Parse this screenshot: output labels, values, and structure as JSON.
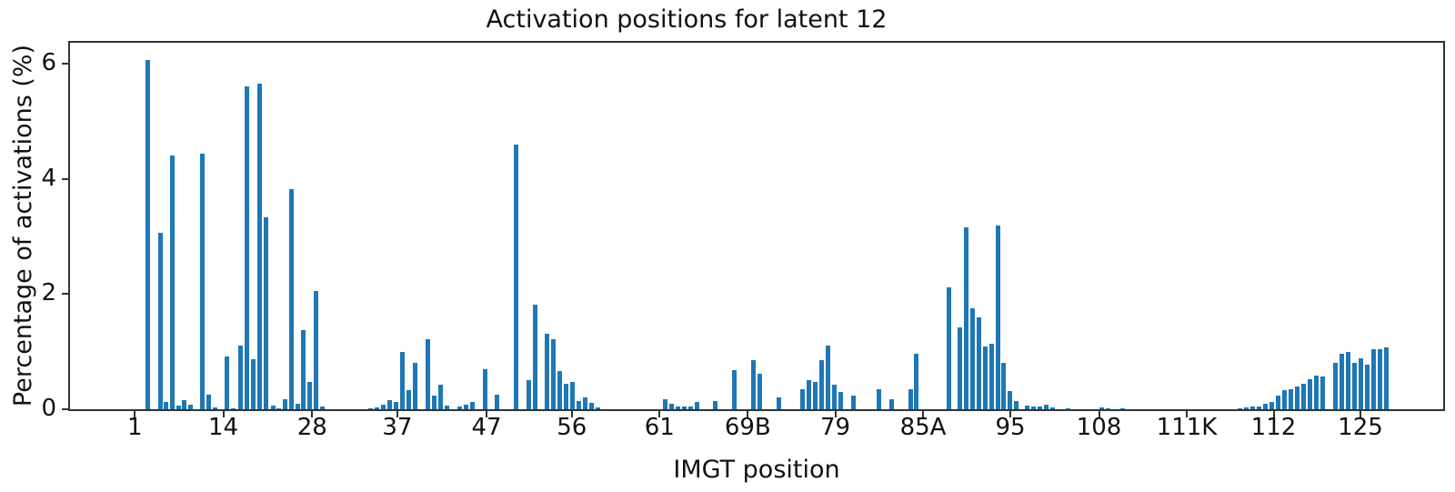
{
  "colors": {
    "bar": "#1f77b4",
    "axis": "#333333",
    "text": "#111111",
    "background": "#ffffff"
  },
  "chart_data": {
    "type": "bar",
    "title": "Activation positions for latent 12",
    "xlabel": "IMGT position",
    "ylabel": "Percentage of activations (%)",
    "ylim": [
      0,
      6.38
    ],
    "yticks": [
      0,
      2,
      4,
      6
    ],
    "grid": false,
    "legend": "none",
    "xticks": [
      [
        "1",
        148.3
      ],
      [
        "14",
        245.5
      ],
      [
        "28",
        343.3
      ],
      [
        "37",
        436.9
      ],
      [
        "47",
        535.0
      ],
      [
        "56",
        628.8
      ],
      [
        "61",
        725.3
      ],
      [
        "69B",
        822.3
      ],
      [
        "79",
        918.5
      ],
      [
        "85A",
        1015.0
      ],
      [
        "95",
        1111.0
      ],
      [
        "108",
        1208.5
      ],
      [
        "111K",
        1305.0
      ],
      [
        "112",
        1400.5
      ],
      [
        "125",
        1496.0
      ]
    ],
    "bars": [
      [
        162.7,
        6.06
      ],
      [
        176.0,
        3.07
      ],
      [
        182.7,
        0.12
      ],
      [
        189.3,
        4.41
      ],
      [
        196.0,
        0.06
      ],
      [
        202.7,
        0.16
      ],
      [
        209.3,
        0.08
      ],
      [
        222.7,
        4.44
      ],
      [
        229.3,
        0.26
      ],
      [
        236.0,
        0.03
      ],
      [
        249.3,
        0.91
      ],
      [
        256.3,
        0.02
      ],
      [
        264.3,
        1.11
      ],
      [
        271.3,
        5.61
      ],
      [
        278.3,
        0.87
      ],
      [
        285.3,
        5.65
      ],
      [
        292.3,
        3.33
      ],
      [
        300.0,
        0.06
      ],
      [
        306.3,
        0.02
      ],
      [
        313.0,
        0.18
      ],
      [
        320.0,
        3.82
      ],
      [
        327.0,
        0.09
      ],
      [
        333.3,
        1.38
      ],
      [
        340.3,
        0.47
      ],
      [
        347.0,
        2.06
      ],
      [
        354.3,
        0.04
      ],
      [
        407.0,
        0.02
      ],
      [
        414.0,
        0.03
      ],
      [
        421.0,
        0.08
      ],
      [
        428.0,
        0.16
      ],
      [
        435.0,
        0.12
      ],
      [
        442.5,
        1.0
      ],
      [
        449.5,
        0.33
      ],
      [
        456.5,
        0.81
      ],
      [
        470.5,
        1.21
      ],
      [
        477.3,
        0.24
      ],
      [
        484.3,
        0.42
      ],
      [
        491.3,
        0.06
      ],
      [
        505.0,
        0.05
      ],
      [
        512.0,
        0.08
      ],
      [
        519.0,
        0.12
      ],
      [
        533.0,
        0.7
      ],
      [
        546.0,
        0.25
      ],
      [
        567.7,
        4.59
      ],
      [
        581.7,
        0.5
      ],
      [
        588.7,
        1.81
      ],
      [
        601.5,
        1.31
      ],
      [
        608.5,
        1.21
      ],
      [
        615.3,
        0.66
      ],
      [
        622.3,
        0.44
      ],
      [
        629.3,
        0.48
      ],
      [
        636.3,
        0.14
      ],
      [
        643.3,
        0.2
      ],
      [
        650.3,
        0.11
      ],
      [
        657.3,
        0.03
      ],
      [
        731.5,
        0.18
      ],
      [
        738.5,
        0.09
      ],
      [
        745.0,
        0.05
      ],
      [
        752.0,
        0.05
      ],
      [
        759.0,
        0.04
      ],
      [
        766.0,
        0.12
      ],
      [
        786.7,
        0.15
      ],
      [
        807.7,
        0.68
      ],
      [
        828.3,
        0.85
      ],
      [
        835.3,
        0.61
      ],
      [
        856.0,
        0.21
      ],
      [
        882.7,
        0.34
      ],
      [
        889.7,
        0.51
      ],
      [
        896.7,
        0.47
      ],
      [
        903.7,
        0.86
      ],
      [
        910.7,
        1.11
      ],
      [
        917.3,
        0.42
      ],
      [
        924.3,
        0.3
      ],
      [
        938.3,
        0.24
      ],
      [
        966.0,
        0.34
      ],
      [
        980.0,
        0.18
      ],
      [
        1001.0,
        0.34
      ],
      [
        1007.7,
        0.96
      ],
      [
        1043.3,
        2.12
      ],
      [
        1055.3,
        1.42
      ],
      [
        1062.3,
        3.16
      ],
      [
        1069.3,
        1.76
      ],
      [
        1076.0,
        1.59
      ],
      [
        1083.0,
        1.09
      ],
      [
        1090.0,
        1.13
      ],
      [
        1097.0,
        3.19
      ],
      [
        1103.7,
        0.81
      ],
      [
        1110.7,
        0.32
      ],
      [
        1117.7,
        0.14
      ],
      [
        1129.5,
        0.06
      ],
      [
        1136.5,
        0.05
      ],
      [
        1143.5,
        0.04
      ],
      [
        1150.5,
        0.08
      ],
      [
        1157.5,
        0.03
      ],
      [
        1174.0,
        0.02
      ],
      [
        1211.5,
        0.03
      ],
      [
        1218.5,
        0.02
      ],
      [
        1234.0,
        0.02
      ],
      [
        1363.0,
        0.02
      ],
      [
        1370.0,
        0.03
      ],
      [
        1377.0,
        0.04
      ],
      [
        1384.0,
        0.05
      ],
      [
        1391.0,
        0.09
      ],
      [
        1398.0,
        0.13
      ],
      [
        1405.0,
        0.24
      ],
      [
        1412.0,
        0.33
      ],
      [
        1419.0,
        0.34
      ],
      [
        1426.0,
        0.39
      ],
      [
        1433.0,
        0.44
      ],
      [
        1440.0,
        0.52
      ],
      [
        1447.0,
        0.59
      ],
      [
        1454.0,
        0.57
      ],
      [
        1468.0,
        0.8
      ],
      [
        1475.0,
        0.97
      ],
      [
        1482.0,
        0.99
      ],
      [
        1489.0,
        0.8
      ],
      [
        1496.0,
        0.88
      ],
      [
        1503.0,
        0.77
      ],
      [
        1510.0,
        1.04
      ],
      [
        1517.0,
        1.04
      ],
      [
        1524.0,
        1.08
      ]
    ]
  }
}
